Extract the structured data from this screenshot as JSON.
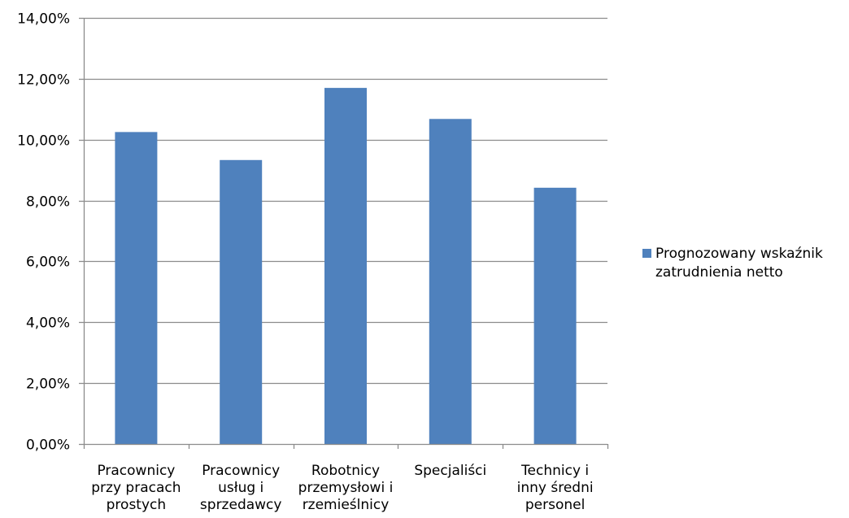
{
  "chart_data": {
    "type": "bar",
    "categories": [
      [
        "Pracownicy",
        "przy pracach",
        "prostych"
      ],
      [
        "Pracownicy",
        "usług i",
        "sprzedawcy"
      ],
      [
        "Robotnicy",
        "przemysłowi i",
        "rzemieślnicy"
      ],
      [
        "Specjaliści"
      ],
      [
        "Technicy i",
        "inny średni",
        "personel"
      ]
    ],
    "series": [
      {
        "name": "Prognozowany wskaźnik zatrudnienia netto",
        "legend_lines": [
          "Prognozowany wskaźnik",
          "zatrudnienia netto"
        ],
        "values": [
          10.25,
          9.33,
          11.7,
          10.68,
          8.42
        ],
        "color": "#4f81bd"
      }
    ],
    "ylim": [
      0,
      14
    ],
    "yticks": [
      0,
      2,
      4,
      6,
      8,
      10,
      12,
      14
    ],
    "ytick_labels": [
      "0,00%",
      "2,00%",
      "4,00%",
      "6,00%",
      "8,00%",
      "10,00%",
      "12,00%",
      "14,00%"
    ],
    "grid": true,
    "legend": "right",
    "title": "",
    "xlabel": "",
    "ylabel": ""
  }
}
